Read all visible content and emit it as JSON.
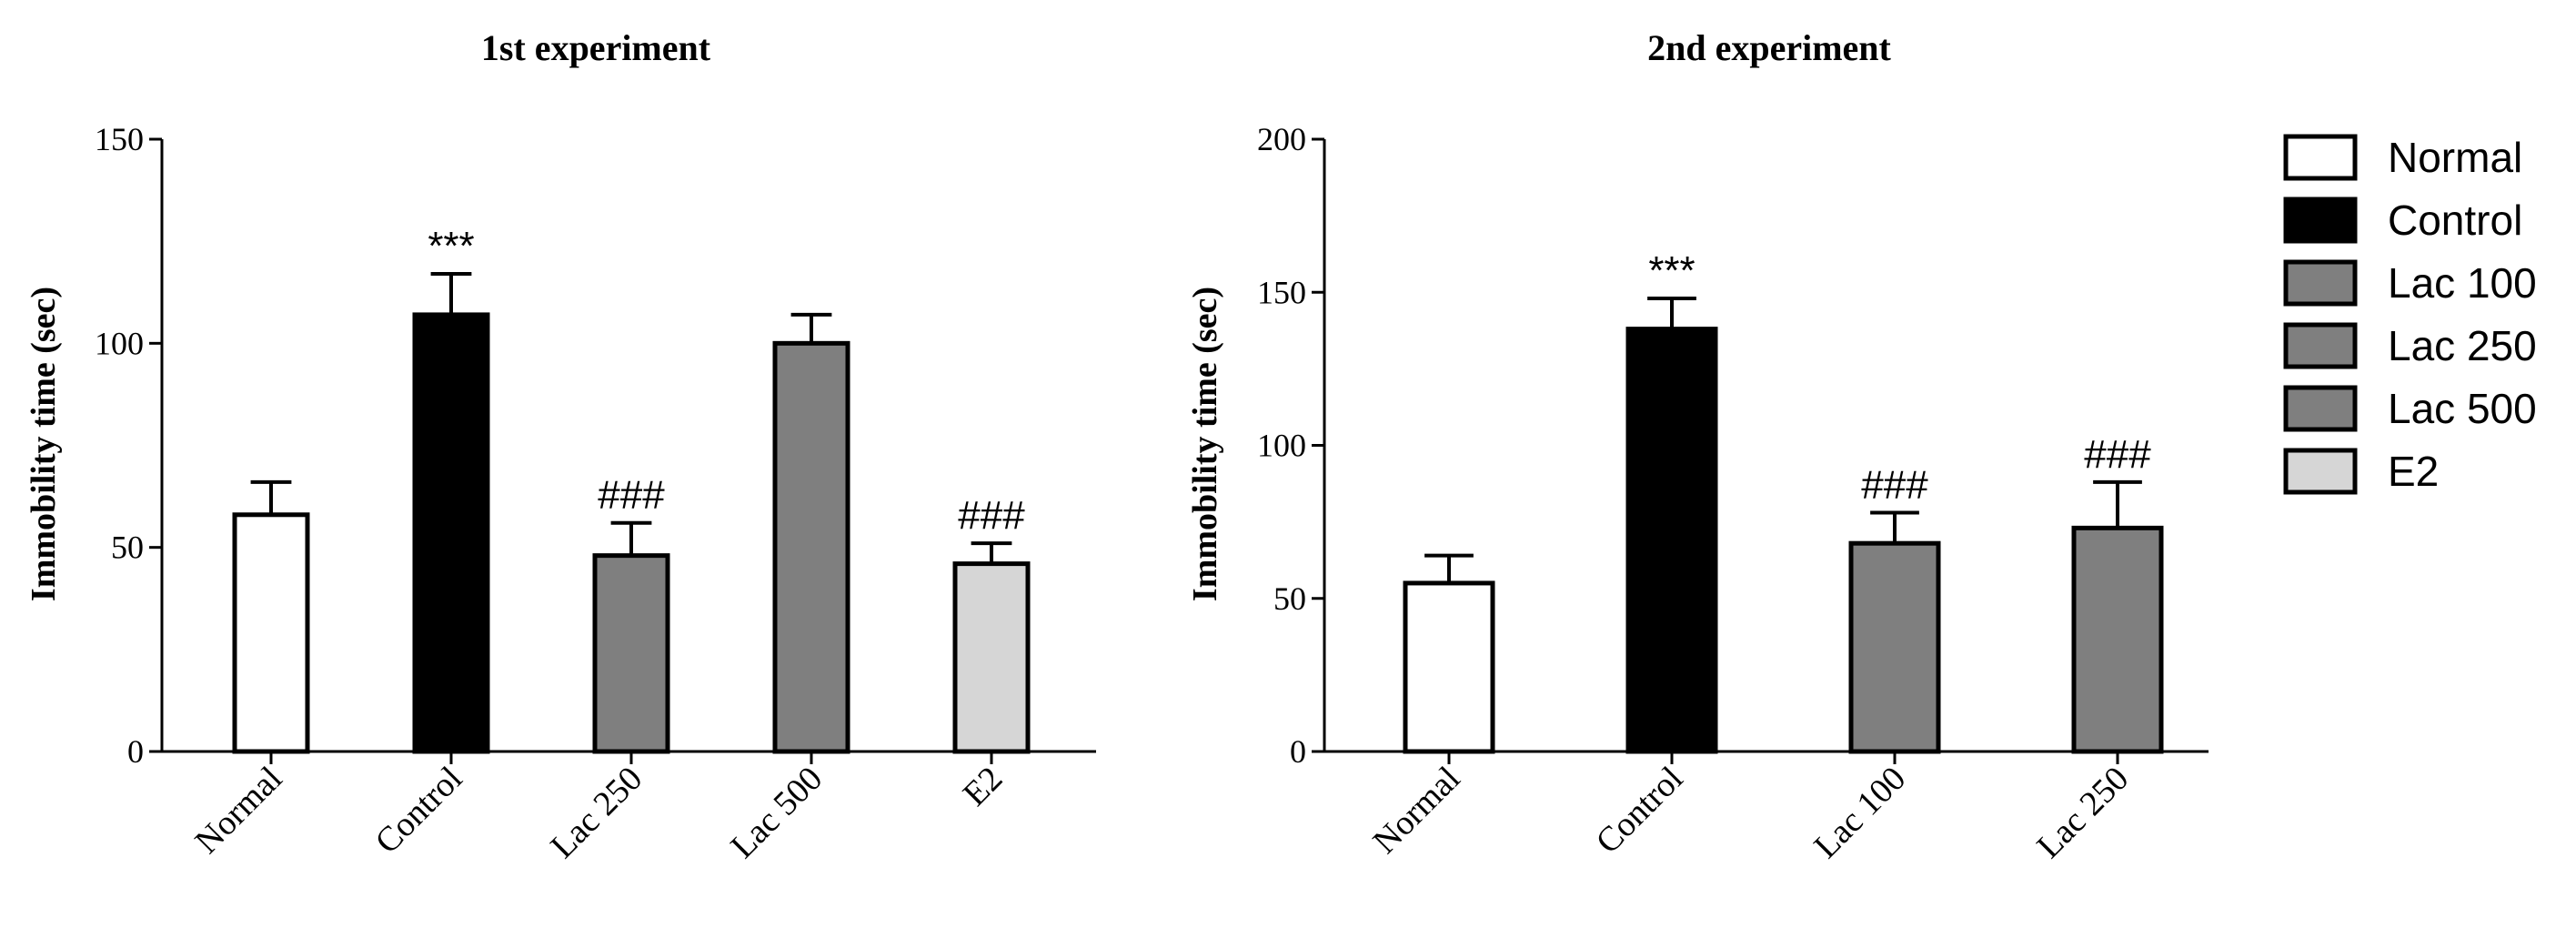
{
  "colors": {
    "Normal": "#ffffff",
    "Control": "#000000",
    "Lac 100": "#7f7f7f",
    "Lac 250": "#7f7f7f",
    "Lac 500": "#7f7f7f",
    "E2": "#d6d6d6"
  },
  "legend": [
    "Normal",
    "Control",
    "Lac 100",
    "Lac 250",
    "Lac 500",
    "E2"
  ],
  "chart_data": [
    {
      "type": "bar",
      "title": "1st experiment",
      "xlabel": "",
      "ylabel": "Immobility time (sec)",
      "ylim": [
        0,
        150
      ],
      "yticks": [
        0,
        50,
        100,
        150
      ],
      "categories": [
        "Normal",
        "Control",
        "Lac 250",
        "Lac 500",
        "E2"
      ],
      "values": [
        58,
        107,
        48,
        100,
        46
      ],
      "errors": [
        8,
        10,
        8,
        7,
        5
      ],
      "annotations": [
        "",
        "***",
        "###",
        "",
        "###"
      ]
    },
    {
      "type": "bar",
      "title": "2nd experiment",
      "xlabel": "",
      "ylabel": "Immobility time (sec)",
      "ylim": [
        0,
        200
      ],
      "yticks": [
        0,
        50,
        100,
        150,
        200
      ],
      "categories": [
        "Normal",
        "Control",
        "Lac 100",
        "Lac 250"
      ],
      "values": [
        55,
        138,
        68,
        73
      ],
      "errors": [
        9,
        10,
        10,
        15
      ],
      "annotations": [
        "",
        "***",
        "###",
        "###"
      ]
    }
  ]
}
